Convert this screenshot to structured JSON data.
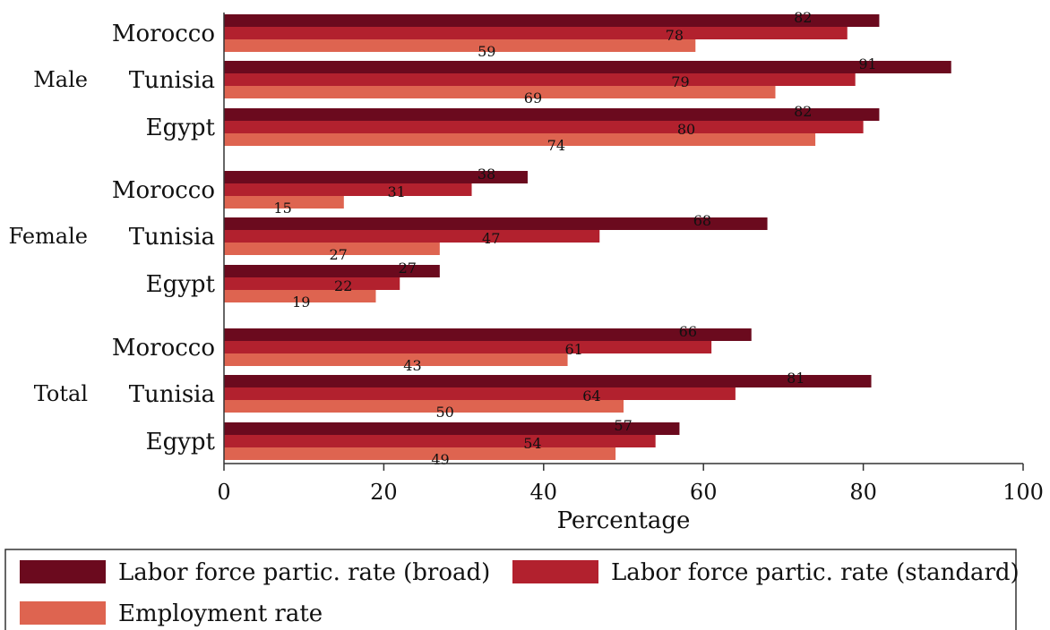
{
  "chart_data": {
    "type": "bar",
    "orientation": "horizontal",
    "xlabel": "Percentage",
    "xlim": [
      0,
      100
    ],
    "xticks": [
      "0",
      "20",
      "40",
      "60",
      "80",
      "100"
    ],
    "groups": [
      {
        "name": "Male",
        "categories": [
          "Morocco",
          "Tunisia",
          "Egypt"
        ],
        "values": [
          [
            82,
            78,
            59
          ],
          [
            91,
            79,
            69
          ],
          [
            82,
            80,
            74
          ]
        ]
      },
      {
        "name": "Female",
        "categories": [
          "Morocco",
          "Tunisia",
          "Egypt"
        ],
        "values": [
          [
            38,
            31,
            15
          ],
          [
            68,
            47,
            27
          ],
          [
            27,
            22,
            19
          ]
        ]
      },
      {
        "name": "Total",
        "categories": [
          "Morocco",
          "Tunisia",
          "Egypt"
        ],
        "values": [
          [
            66,
            61,
            43
          ],
          [
            81,
            64,
            50
          ],
          [
            57,
            54,
            49
          ]
        ]
      }
    ],
    "series": [
      {
        "name": "Labor force partic. rate (broad)",
        "color": "#6b0a1e"
      },
      {
        "name": "Labor force partic. rate (standard)",
        "color": "#b2212e"
      },
      {
        "name": "Employment rate",
        "color": "#de6450"
      }
    ],
    "legend_position": "bottom",
    "grid": false
  }
}
